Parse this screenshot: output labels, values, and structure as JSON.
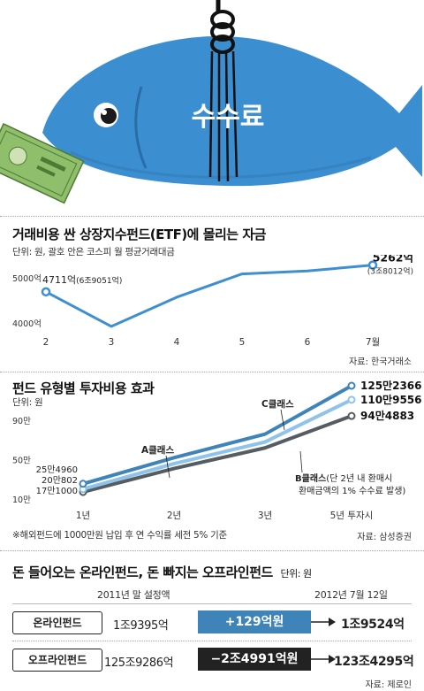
{
  "hero": {
    "title": "수수료"
  },
  "chart_data": [
    {
      "type": "line",
      "title": "거래비용 싼 상장지수펀드(ETF)에 몰리는 자금",
      "subtitle": "단위: 원, 괄호 안은 코스피 월 평균거래대금",
      "x": [
        "2",
        "3",
        "4",
        "5",
        "6",
        "7월"
      ],
      "series": [
        {
          "values": [
            4711,
            4000,
            4600,
            5080,
            5140,
            5262
          ]
        }
      ],
      "y_ticks": [
        {
          "value": 5000,
          "label": "5000억"
        },
        {
          "value": 4000,
          "label": "4000억"
        }
      ],
      "ylim": [
        3980,
        5400
      ],
      "annotations": [
        {
          "point": 0,
          "value_label": "4711억",
          "paren_label": "(6조9051억)"
        },
        {
          "point": 5,
          "value_label": "5262억",
          "paren_label": "(3조8012억)"
        }
      ],
      "source": "자료: 한국거래소"
    },
    {
      "type": "line",
      "title": "펀드 유형별 투자비용 효과",
      "subtitle": "단위: 원",
      "x": [
        "1년",
        "2년",
        "3년",
        "5년 투자시"
      ],
      "x_positions": [
        1,
        2,
        3,
        4
      ],
      "ylim": [
        90,
        1300000
      ],
      "y_ticks": [
        {
          "value": 900000,
          "label": "90만"
        },
        {
          "value": 500000,
          "label": "50만"
        },
        {
          "value": 100000,
          "label": "10만"
        }
      ],
      "series": [
        {
          "name": "C클래스",
          "color": "#3e84b8",
          "values": [
            254960,
            520000,
            760000,
            1252366
          ],
          "end_label": "125만2366"
        },
        {
          "name": "A클래스",
          "color": "#555c62",
          "values": [
            171000,
            410000,
            620000,
            944883
          ],
          "end_label": "94만4883"
        },
        {
          "name": "",
          "color": "#8fc3ea",
          "values": [
            200802,
            460000,
            680000,
            1109556
          ],
          "end_label": "110만9556"
        }
      ],
      "start_labels": [
        "25만4960",
        "20만802",
        "17만1000"
      ],
      "b_class_label": "B클래스",
      "b_class_note_1": "(단 2년 내 환매시",
      "b_class_note_2": "환매금액의 1% 수수료 발생)",
      "footnote": "※해외펀드에 1000만원 납입 후 연 수익률 세전 5% 기준",
      "source": "자료: 삼성증권"
    }
  ],
  "table": {
    "title": "돈 들어오는 온라인펀드, 돈 빠지는 오프라인펀드",
    "unit": "단위: 원",
    "col_start": "2011년 말 설정액",
    "col_end": "2012년 7월 12일",
    "rows": [
      {
        "label": "온라인펀드",
        "start": "1조9395억",
        "change": "+129억원",
        "end": "1조9524억",
        "color": "#3e84b8"
      },
      {
        "label": "오프라인펀드",
        "start": "125조9286억",
        "change": "−2조4991억원",
        "end": "123조4295억",
        "color": "#222222"
      }
    ],
    "source": "자료: 제로인"
  }
}
